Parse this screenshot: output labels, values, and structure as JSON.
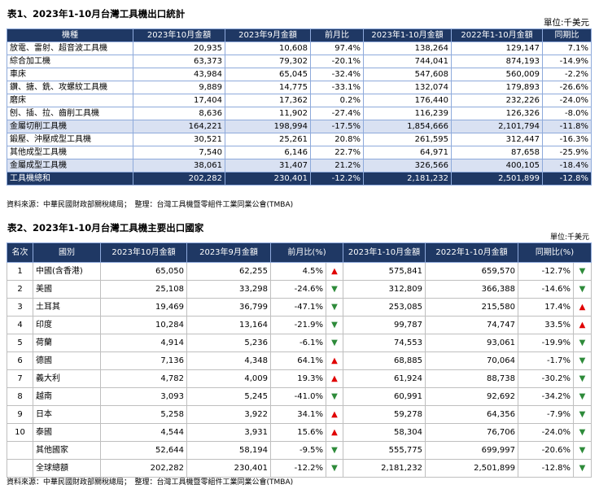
{
  "table1": {
    "title": "表1、2023年1-10月台灣工具機出口統計",
    "unit": "單位:千美元",
    "headers": [
      "機種",
      "2023年10月金額",
      "2023年9月金額",
      "前月比",
      "2023年1-10月金額",
      "2022年1-10月金額",
      "同期比"
    ],
    "rows": [
      [
        "放電、雷射、超音波工具機",
        "20,935",
        "10,608",
        "97.4%",
        "138,264",
        "129,147",
        "7.1%"
      ],
      [
        "綜合加工機",
        "63,373",
        "79,302",
        "-20.1%",
        "744,041",
        "874,193",
        "-14.9%"
      ],
      [
        "車床",
        "43,984",
        "65,045",
        "-32.4%",
        "547,608",
        "560,009",
        "-2.2%"
      ],
      [
        "鑽、搪、銑、攻螺紋工具機",
        "9,889",
        "14,775",
        "-33.1%",
        "132,074",
        "179,893",
        "-26.6%"
      ],
      [
        "磨床",
        "17,404",
        "17,362",
        "0.2%",
        "176,440",
        "232,226",
        "-24.0%"
      ],
      [
        "刨、插、拉、齒削工具機",
        "8,636",
        "11,902",
        "-27.4%",
        "116,239",
        "126,326",
        "-8.0%"
      ],
      [
        "金屬切削工具機",
        "164,221",
        "198,994",
        "-17.5%",
        "1,854,666",
        "2,101,794",
        "-11.8%"
      ],
      [
        "鍛壓、沖壓成型工具機",
        "30,521",
        "25,261",
        "20.8%",
        "261,595",
        "312,447",
        "-16.3%"
      ],
      [
        "其他成型工具機",
        "7,540",
        "6,146",
        "22.7%",
        "64,971",
        "87,658",
        "-25.9%"
      ],
      [
        "金屬成型工具機",
        "38,061",
        "31,407",
        "21.2%",
        "326,566",
        "400,105",
        "-18.4%"
      ],
      [
        "工具機總和",
        "202,282",
        "230,401",
        "-12.2%",
        "2,181,232",
        "2,501,899",
        "-12.8%"
      ]
    ],
    "source": "資料來源：中華民國財政部關稅總局；　整理：台灣工具機暨零組件工業同業公會(TMBA)"
  },
  "table2": {
    "title": "表2、2023年1-10月台灣工具機主要出口國家",
    "unit": "單位:千美元",
    "headers": [
      "名次",
      "國別",
      "2023年10月金額",
      "2023年9月金額",
      "前月比(%)",
      "2023年1-10月金額",
      "2022年1-10月金額",
      "同期比(%)"
    ],
    "rows": [
      {
        "rank": "1",
        "country": "中國(含香港)",
        "oct": "65,050",
        "sep": "62,255",
        "mom": "4.5%",
        "mom_dir": "up",
        "ytd": "575,841",
        "ytd_prev": "659,570",
        "yoy": "-12.7%",
        "yoy_dir": "down"
      },
      {
        "rank": "2",
        "country": "美國",
        "oct": "25,108",
        "sep": "33,298",
        "mom": "-24.6%",
        "mom_dir": "down",
        "ytd": "312,809",
        "ytd_prev": "366,388",
        "yoy": "-14.6%",
        "yoy_dir": "down"
      },
      {
        "rank": "3",
        "country": "土耳其",
        "oct": "19,469",
        "sep": "36,799",
        "mom": "-47.1%",
        "mom_dir": "down",
        "ytd": "253,085",
        "ytd_prev": "215,580",
        "yoy": "17.4%",
        "yoy_dir": "up"
      },
      {
        "rank": "4",
        "country": "印度",
        "oct": "10,284",
        "sep": "13,164",
        "mom": "-21.9%",
        "mom_dir": "down",
        "ytd": "99,787",
        "ytd_prev": "74,747",
        "yoy": "33.5%",
        "yoy_dir": "up"
      },
      {
        "rank": "5",
        "country": "荷蘭",
        "oct": "4,914",
        "sep": "5,236",
        "mom": "-6.1%",
        "mom_dir": "down",
        "ytd": "74,553",
        "ytd_prev": "93,061",
        "yoy": "-19.9%",
        "yoy_dir": "down"
      },
      {
        "rank": "6",
        "country": "德國",
        "oct": "7,136",
        "sep": "4,348",
        "mom": "64.1%",
        "mom_dir": "up",
        "ytd": "68,885",
        "ytd_prev": "70,064",
        "yoy": "-1.7%",
        "yoy_dir": "down"
      },
      {
        "rank": "7",
        "country": "義大利",
        "oct": "4,782",
        "sep": "4,009",
        "mom": "19.3%",
        "mom_dir": "up",
        "ytd": "61,924",
        "ytd_prev": "88,738",
        "yoy": "-30.2%",
        "yoy_dir": "down"
      },
      {
        "rank": "8",
        "country": "越南",
        "oct": "3,093",
        "sep": "5,245",
        "mom": "-41.0%",
        "mom_dir": "down",
        "ytd": "60,991",
        "ytd_prev": "92,692",
        "yoy": "-34.2%",
        "yoy_dir": "down"
      },
      {
        "rank": "9",
        "country": "日本",
        "oct": "5,258",
        "sep": "3,922",
        "mom": "34.1%",
        "mom_dir": "up",
        "ytd": "59,278",
        "ytd_prev": "64,356",
        "yoy": "-7.9%",
        "yoy_dir": "down"
      },
      {
        "rank": "10",
        "country": "泰國",
        "oct": "4,544",
        "sep": "3,931",
        "mom": "15.6%",
        "mom_dir": "up",
        "ytd": "58,304",
        "ytd_prev": "76,706",
        "yoy": "-24.0%",
        "yoy_dir": "down"
      },
      {
        "rank": "",
        "country": "其他國家",
        "oct": "52,644",
        "sep": "58,194",
        "mom": "-9.5%",
        "mom_dir": "down",
        "ytd": "555,775",
        "ytd_prev": "699,997",
        "yoy": "-20.6%",
        "yoy_dir": "down"
      },
      {
        "rank": "",
        "country": "全球總額",
        "oct": "202,282",
        "sep": "230,401",
        "mom": "-12.2%",
        "mom_dir": "down",
        "ytd": "2,181,232",
        "ytd_prev": "2,501,899",
        "yoy": "-12.8%",
        "yoy_dir": "down"
      }
    ],
    "source": "資料來源：中華民國財政部關稅總局；　整理：台灣工具機暨零組件工業同業公會(TMBA)"
  },
  "arrows": {
    "up": "▲",
    "down": "▼"
  },
  "colors": {
    "header_bg": "#1f3864",
    "highlight_bg": "#d9e1f2",
    "up": "#e00000",
    "down": "#2e8b3a"
  }
}
